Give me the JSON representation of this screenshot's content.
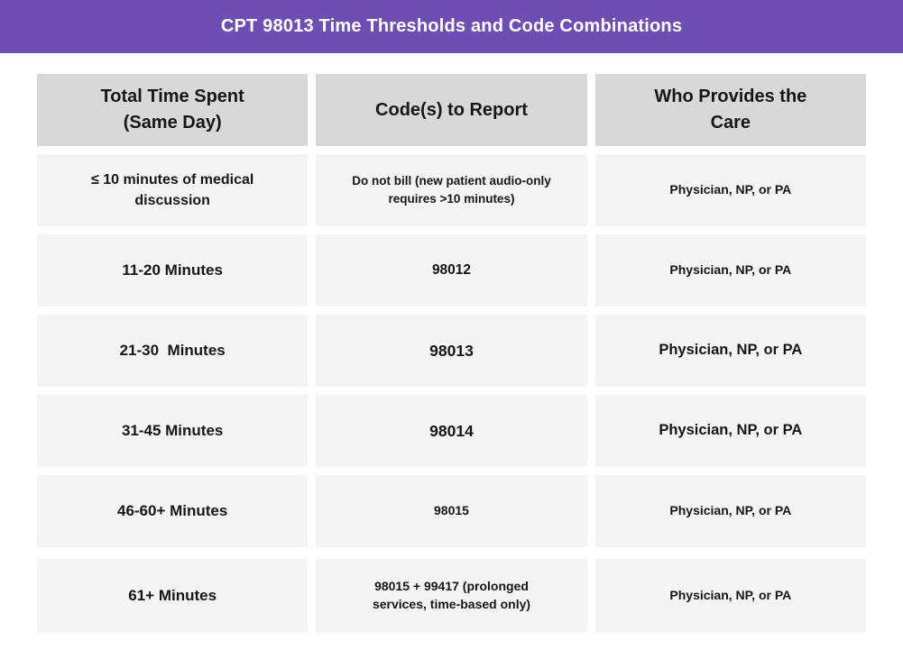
{
  "header": {
    "title": "CPT 98013 Time Thresholds and Code Combinations"
  },
  "colors": {
    "accent_purple": "#6F4EB3",
    "header_cell_bg": "#D8D8D8",
    "body_cell_bg": "#F4F4F4",
    "title_text": "#FFFFFF",
    "cell_text": "#161616"
  },
  "table": {
    "columns": [
      {
        "label": "Total Time Spent\n(Same Day)"
      },
      {
        "label": "Code(s) to Report"
      },
      {
        "label": "Who Provides the\nCare"
      }
    ],
    "rows": [
      {
        "time": "≤ 10 minutes of medical\ndiscussion",
        "code": "Do not bill (new patient audio-only\nrequires >10 minutes)",
        "provider": "Physician, NP, or PA"
      },
      {
        "time": "11-20 Minutes",
        "code": "98012",
        "provider": "Physician, NP, or PA"
      },
      {
        "time": "21-30  Minutes",
        "code": "98013",
        "provider": "Physician, NP, or PA"
      },
      {
        "time": "31-45 Minutes",
        "code": "98014",
        "provider": "Physician, NP, or PA"
      },
      {
        "time": "46-60+ Minutes",
        "code": "98015",
        "provider": "Physician, NP, or PA"
      },
      {
        "time": "61+ Minutes",
        "code": "98015 + 99417 (prolonged\nservices, time-based only)",
        "provider": "Physician, NP, or PA"
      }
    ]
  }
}
